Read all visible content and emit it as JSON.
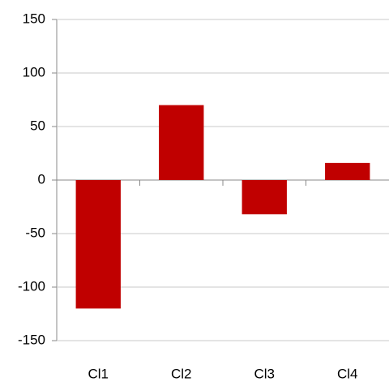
{
  "chart_data": {
    "type": "bar",
    "categories": [
      "Cl1",
      "Cl2",
      "Cl3",
      "Cl4"
    ],
    "values": [
      -120,
      70,
      -32,
      16
    ],
    "color": "#c00000",
    "ylim": [
      -150,
      150
    ],
    "yticks": [
      -150,
      -100,
      -50,
      0,
      50,
      100,
      150
    ],
    "grid": true
  }
}
